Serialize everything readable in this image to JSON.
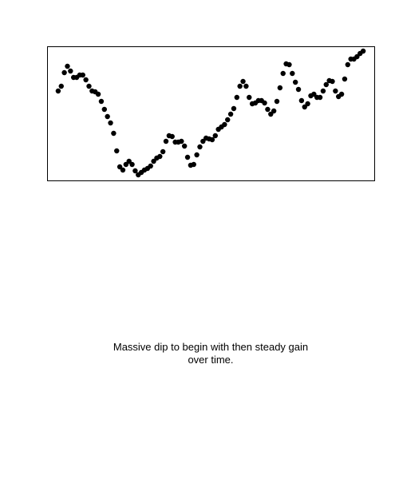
{
  "chart_data": {
    "type": "scatter",
    "color": "#000000",
    "caption": "Massive dip to begin with then steady gain over time.",
    "x": [
      1,
      2,
      3,
      4,
      5,
      6,
      7,
      8,
      9,
      10,
      11,
      12,
      13,
      14,
      15,
      16,
      17,
      18,
      19,
      20,
      21,
      22,
      23,
      24,
      25,
      26,
      27,
      28,
      29,
      30,
      31,
      32,
      33,
      34,
      35,
      36,
      37,
      38,
      39,
      40,
      41,
      42,
      43,
      44,
      45,
      46,
      47,
      48,
      49,
      50,
      51,
      52,
      53,
      54,
      55,
      56,
      57,
      58,
      59,
      60,
      61,
      62,
      63,
      64,
      65,
      66,
      67,
      68,
      69,
      70,
      71,
      72,
      73,
      74,
      75,
      76,
      77,
      78,
      79,
      80,
      81,
      82,
      83,
      84,
      85,
      86,
      87,
      88,
      89,
      90,
      91,
      92,
      93,
      94,
      95,
      96,
      97,
      98,
      99,
      100
    ],
    "values": [
      112,
      118,
      135,
      143,
      137,
      129,
      129,
      132,
      132,
      126,
      118,
      112,
      111,
      108,
      99,
      89,
      80,
      72,
      59,
      37,
      17,
      13,
      20,
      24,
      20,
      12,
      7,
      10,
      13,
      15,
      18,
      24,
      28,
      30,
      36,
      49,
      56,
      55,
      48,
      48,
      49,
      43,
      29,
      19,
      20,
      32,
      42,
      49,
      53,
      52,
      51,
      56,
      64,
      67,
      70,
      76,
      83,
      90,
      104,
      118,
      124,
      118,
      104,
      96,
      97,
      100,
      100,
      97,
      89,
      83,
      87,
      99,
      116,
      134,
      146,
      145,
      134,
      123,
      114,
      100,
      92,
      96,
      106,
      108,
      104,
      104,
      112,
      120,
      125,
      124,
      112,
      105,
      108,
      127,
      145,
      152,
      152,
      155,
      159,
      162
    ],
    "xlim": [
      -2.6,
      103.6
    ],
    "ylim": [
      0,
      168
    ]
  }
}
